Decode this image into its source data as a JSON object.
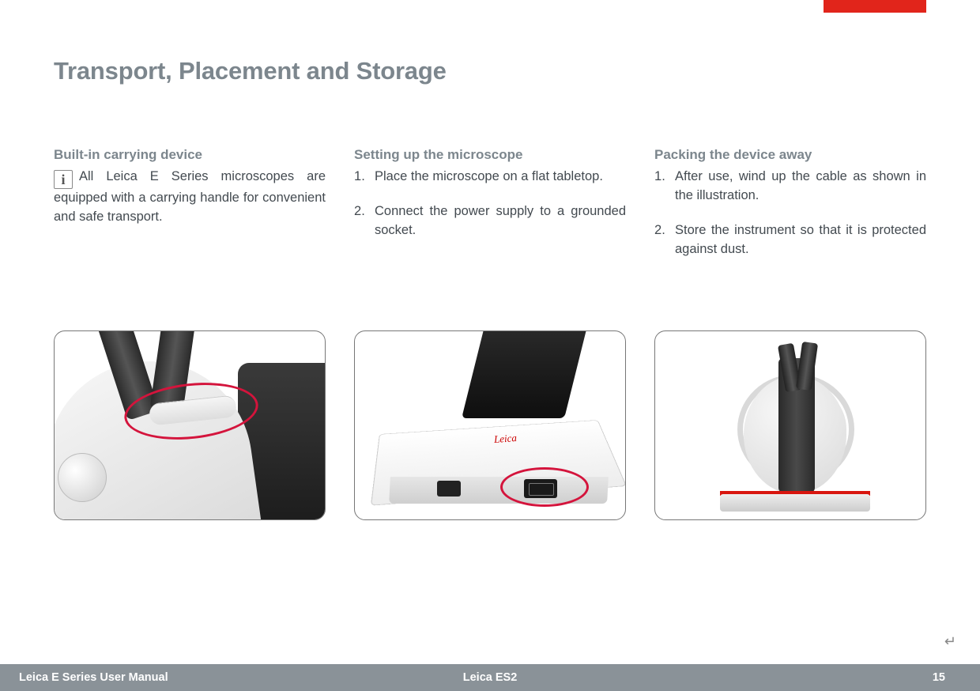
{
  "header": {
    "title": "Transport, Placement and Storage",
    "title_color": "#7c868d",
    "tab_color": "#e1251b"
  },
  "columns": {
    "col1": {
      "heading": "Built-in carrying device",
      "info_text": "All Leica E Series microscopes are equipped with a carrying handle for convenient and safe transport."
    },
    "col2": {
      "heading": "Setting up the microscope",
      "items": [
        "Place the microscope on a flat tabletop.",
        "Connect the power supply to a grounded socket."
      ]
    },
    "col3": {
      "heading": "Packing the device away",
      "items": [
        "After use, wind up the cable as shown in the illustration.",
        "Store the instrument so that it is protected against dust."
      ]
    }
  },
  "illustrations": {
    "img1": {
      "description": "microscope-carrying-handle",
      "highlight_color": "#d4143c"
    },
    "img2": {
      "description": "microscope-base-power-socket",
      "highlight_color": "#d4143c",
      "logo_text": "Leica"
    },
    "img3": {
      "description": "microscope-cable-wrapped",
      "accent_color": "#d8160f"
    }
  },
  "footer": {
    "left": "Leica E Series User Manual",
    "center": "Leica ES2",
    "page": "15",
    "bg_color": "#8a9298"
  },
  "return_glyph": "↵"
}
